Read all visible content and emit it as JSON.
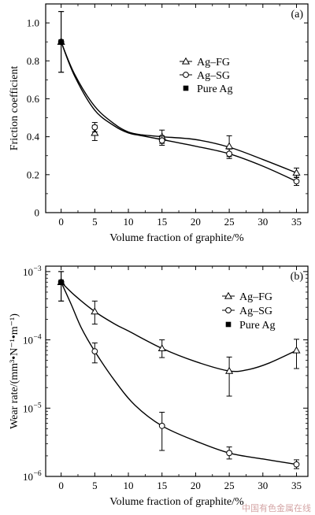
{
  "chart_data": [
    {
      "type": "line",
      "panel_label": "(a)",
      "xlabel": "Volume fraction of graphite/%",
      "ylabel": "Friction coefficient",
      "x_ticks": [
        0,
        5,
        10,
        15,
        20,
        25,
        30,
        35
      ],
      "y_ticks": [
        0,
        0.2,
        0.4,
        0.6,
        0.8,
        1.0
      ],
      "y_tick_labels": [
        "0",
        "0.2",
        "0.4",
        "0.6",
        "0.8",
        "1.0"
      ],
      "xlim": [
        -2.3,
        36.7
      ],
      "ylim": [
        0,
        1.1
      ],
      "legend_position": "right-middle",
      "series": [
        {
          "name": "Ag–FG",
          "marker": "triangle",
          "x": [
            0,
            5,
            15,
            25,
            35
          ],
          "y": [
            0.9,
            0.42,
            0.4,
            0.35,
            0.21
          ],
          "err": [
            0.16,
            0.04,
            0.035,
            0.055,
            0.025
          ],
          "curve_x": [
            0,
            2,
            5,
            8,
            10,
            12,
            15,
            20,
            25,
            30,
            35
          ],
          "curve_y": [
            0.9,
            0.73,
            0.56,
            0.465,
            0.425,
            0.41,
            0.4,
            0.385,
            0.345,
            0.28,
            0.21
          ]
        },
        {
          "name": "Ag–SG",
          "marker": "circle",
          "x": [
            0,
            5,
            15,
            25,
            35
          ],
          "y": [
            0.9,
            0.45,
            0.38,
            0.31,
            0.165
          ],
          "err": [
            0.16,
            0.025,
            0.025,
            0.025,
            0.022
          ],
          "curve_x": [
            0,
            2,
            5,
            8,
            10,
            12,
            15,
            20,
            25,
            30,
            35
          ],
          "curve_y": [
            0.9,
            0.72,
            0.54,
            0.455,
            0.42,
            0.405,
            0.385,
            0.35,
            0.31,
            0.245,
            0.165
          ]
        },
        {
          "name": "Pure Ag",
          "marker": "square",
          "x": [
            0
          ],
          "y": [
            0.9
          ]
        }
      ]
    },
    {
      "type": "line",
      "panel_label": "(b)",
      "xlabel": "Volume fraction of graphite/%",
      "ylabel": "Wear rate/(mm³•N⁻¹•m⁻¹)",
      "log_y": true,
      "x_ticks": [
        0,
        5,
        10,
        15,
        20,
        25,
        30,
        35
      ],
      "y_tick_exponents": [
        -6,
        -5,
        -4,
        -3
      ],
      "y_tick_base": "10",
      "xlim": [
        -2.3,
        36.7
      ],
      "ylim": [
        1e-06,
        0.0012
      ],
      "legend_position": "top-right",
      "series": [
        {
          "name": "Ag–FG",
          "marker": "triangle",
          "x": [
            0,
            5,
            15,
            25,
            35
          ],
          "y": [
            0.0007,
            0.00026,
            7.5e-05,
            3.5e-05,
            7e-05
          ],
          "err_low": [
            0.00037,
            0.00017,
            5.5e-05,
            1.5e-05,
            3.8e-05
          ],
          "err_high": [
            0.001,
            0.00037,
            0.0001,
            5.6e-05,
            0.000102
          ],
          "curve_x": [
            0,
            2,
            5,
            8,
            10,
            15,
            20,
            25,
            28,
            31,
            35
          ],
          "curve_y": [
            0.0007,
            0.00045,
            0.00026,
            0.00017,
            0.000135,
            7.5e-05,
            4.8e-05,
            3.5e-05,
            3.7e-05,
            4.6e-05,
            7e-05
          ]
        },
        {
          "name": "Ag–SG",
          "marker": "circle",
          "x": [
            0,
            5,
            15,
            25,
            35
          ],
          "y": [
            0.0007,
            6.8e-05,
            5.5e-06,
            2.2e-06,
            1.5e-06
          ],
          "err_low": [
            0.00037,
            4.6e-05,
            2.4e-06,
            1.8e-06,
            1.3e-06
          ],
          "err_high": [
            0.001,
            9e-05,
            8.7e-06,
            2.7e-06,
            1.75e-06
          ],
          "curve_x": [
            0,
            1.5,
            3,
            5,
            8,
            11,
            15,
            20,
            25,
            30,
            35
          ],
          "curve_y": [
            0.0007,
            0.00033,
            0.00015,
            6.8e-05,
            2.5e-05,
            1.1e-05,
            5.5e-06,
            3.3e-06,
            2.2e-06,
            1.8e-06,
            1.5e-06
          ]
        },
        {
          "name": "Pure Ag",
          "marker": "square",
          "x": [
            0
          ],
          "y": [
            0.0007
          ]
        }
      ]
    }
  ],
  "watermark": "中国有色金属在线"
}
